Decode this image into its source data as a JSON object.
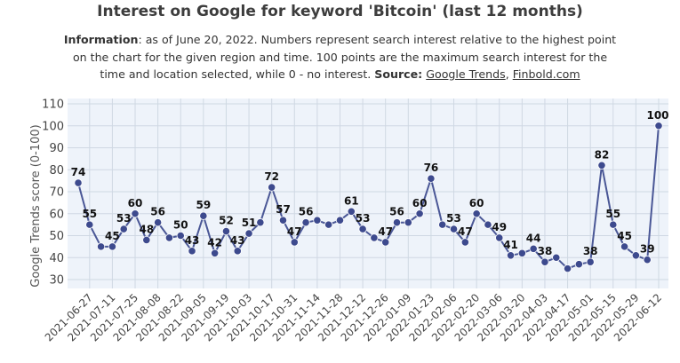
{
  "chart_data": {
    "type": "line",
    "title": "Interest on Google for keyword 'Bitcoin' (last 12 months)",
    "info": {
      "label": "Information",
      "text": ": as of June 20, 2022. Numbers represent search interest relative to the highest point on the chart for the given region and time. 100 points are the maximum search interest for the time and location selected, while 0 - no interest. ",
      "source_label": "Source:",
      "source_1": "Google Trends",
      "separator": ", ",
      "source_2": "Finbold.com"
    },
    "ylabel": "Google Trends score (0-100)",
    "xlabel": "",
    "ylim": [
      30,
      110
    ],
    "yticks": [
      30,
      40,
      50,
      60,
      70,
      80,
      90,
      100,
      110
    ],
    "grid": true,
    "line_color": "#4a5796",
    "marker_color": "#3d4a8e",
    "x": [
      "2021-06-20",
      "2021-06-27",
      "2021-07-04",
      "2021-07-11",
      "2021-07-18",
      "2021-07-25",
      "2021-08-01",
      "2021-08-08",
      "2021-08-15",
      "2021-08-22",
      "2021-08-29",
      "2021-09-05",
      "2021-09-12",
      "2021-09-19",
      "2021-09-26",
      "2021-10-03",
      "2021-10-10",
      "2021-10-17",
      "2021-10-24",
      "2021-10-31",
      "2021-11-07",
      "2021-11-14",
      "2021-11-21",
      "2021-11-28",
      "2021-12-05",
      "2021-12-12",
      "2021-12-19",
      "2021-12-26",
      "2022-01-02",
      "2022-01-09",
      "2022-01-16",
      "2022-01-23",
      "2022-01-30",
      "2022-02-06",
      "2022-02-13",
      "2022-02-20",
      "2022-02-27",
      "2022-03-06",
      "2022-03-13",
      "2022-03-20",
      "2022-03-27",
      "2022-04-03",
      "2022-04-10",
      "2022-04-17",
      "2022-04-24",
      "2022-05-01",
      "2022-05-08",
      "2022-05-15",
      "2022-05-22",
      "2022-05-29",
      "2022-06-05",
      "2022-06-12"
    ],
    "values": [
      74,
      55,
      45,
      45,
      53,
      60,
      48,
      56,
      49,
      50,
      43,
      59,
      42,
      52,
      43,
      51,
      56,
      72,
      57,
      47,
      56,
      57,
      55,
      57,
      61,
      53,
      49,
      47,
      56,
      56,
      60,
      76,
      55,
      53,
      47,
      60,
      55,
      49,
      41,
      42,
      44,
      38,
      40,
      35,
      37,
      38,
      82,
      55,
      45,
      41,
      39,
      100
    ],
    "xtick_labels": [
      "2021-06-27",
      "2021-07-11",
      "2021-07-25",
      "2021-08-08",
      "2021-08-22",
      "2021-09-05",
      "2021-09-19",
      "2021-10-03",
      "2021-10-17",
      "2021-10-31",
      "2021-11-14",
      "2021-11-28",
      "2021-12-12",
      "2021-12-26",
      "2022-01-09",
      "2022-01-23",
      "2022-02-06",
      "2022-02-20",
      "2022-03-06",
      "2022-03-20",
      "2022-04-03",
      "2022-04-17",
      "2022-05-01",
      "2022-05-15",
      "2022-05-29",
      "2022-06-12"
    ],
    "data_labels": [
      {
        "x": "2021-06-20",
        "label": "74"
      },
      {
        "x": "2021-06-27",
        "label": "55"
      },
      {
        "x": "2021-07-11",
        "label": "45"
      },
      {
        "x": "2021-07-18",
        "label": "53"
      },
      {
        "x": "2021-07-25",
        "label": "60"
      },
      {
        "x": "2021-08-01",
        "label": "48"
      },
      {
        "x": "2021-08-08",
        "label": "56"
      },
      {
        "x": "2021-08-22",
        "label": "50"
      },
      {
        "x": "2021-08-29",
        "label": "43"
      },
      {
        "x": "2021-09-05",
        "label": "59"
      },
      {
        "x": "2021-09-12",
        "label": "42"
      },
      {
        "x": "2021-09-19",
        "label": "52"
      },
      {
        "x": "2021-09-26",
        "label": "43"
      },
      {
        "x": "2021-10-03",
        "label": "51"
      },
      {
        "x": "2021-10-17",
        "label": "72"
      },
      {
        "x": "2021-10-24",
        "label": "57"
      },
      {
        "x": "2021-10-31",
        "label": "47"
      },
      {
        "x": "2021-11-07",
        "label": "56"
      },
      {
        "x": "2021-12-05",
        "label": "61"
      },
      {
        "x": "2021-12-12",
        "label": "53"
      },
      {
        "x": "2021-12-26",
        "label": "47"
      },
      {
        "x": "2022-01-02",
        "label": "56"
      },
      {
        "x": "2022-01-16",
        "label": "60"
      },
      {
        "x": "2022-01-23",
        "label": "76"
      },
      {
        "x": "2022-02-06",
        "label": "53"
      },
      {
        "x": "2022-02-13",
        "label": "47"
      },
      {
        "x": "2022-02-20",
        "label": "60"
      },
      {
        "x": "2022-03-06",
        "label": "49"
      },
      {
        "x": "2022-03-13",
        "label": "41"
      },
      {
        "x": "2022-03-27",
        "label": "44"
      },
      {
        "x": "2022-04-03",
        "label": "38"
      },
      {
        "x": "2022-05-01",
        "label": "38"
      },
      {
        "x": "2022-05-08",
        "label": "82"
      },
      {
        "x": "2022-05-15",
        "label": "55"
      },
      {
        "x": "2022-05-22",
        "label": "45"
      },
      {
        "x": "2022-06-05",
        "label": "39"
      },
      {
        "x": "2022-06-12",
        "label": "100"
      }
    ]
  }
}
